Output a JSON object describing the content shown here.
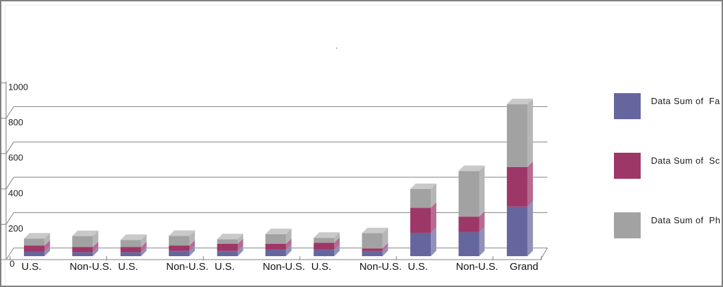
{
  "title_dot": ".",
  "chart_data": {
    "type": "bar",
    "variant": "3d-stacked-column",
    "title": ".",
    "categories": [
      "U.S.",
      "Non-U.S.",
      "U.S.",
      "Non-U.S.",
      "U.S.",
      "Non-U.S.",
      "U.S.",
      "Non-U.S.",
      "U.S.",
      "Non-U.S.",
      "Grand"
    ],
    "series": [
      {
        "name": "Data Sum of  Fa",
        "color": "#66669f",
        "color_side": "#9191b9",
        "color_top": "#b9b9d0",
        "values": [
          25,
          22,
          22,
          30,
          30,
          36,
          36,
          28,
          132,
          136,
          280
        ]
      },
      {
        "name": "Data Sum of  Sc",
        "color": "#9d3767",
        "color_side": "#b76b91",
        "color_top": "#cb9aae",
        "values": [
          35,
          30,
          30,
          30,
          40,
          34,
          40,
          16,
          142,
          88,
          225
        ]
      },
      {
        "name": "Data Sum of  Ph",
        "color": "#a2a2a2",
        "color_side": "#b6b6b6",
        "color_top": "#c9c9c9",
        "values": [
          40,
          62,
          40,
          55,
          26,
          55,
          28,
          86,
          106,
          258,
          355
        ]
      }
    ],
    "xlabel": "",
    "ylabel": "",
    "ylim": [
      0,
      1000
    ],
    "yticks": [
      0,
      200,
      400,
      600,
      800,
      1000
    ],
    "grid": true,
    "legend_position": "right",
    "axis_color": "#808080",
    "tick_label_color": "#1c1c1c",
    "category_label_color": "#111111"
  }
}
